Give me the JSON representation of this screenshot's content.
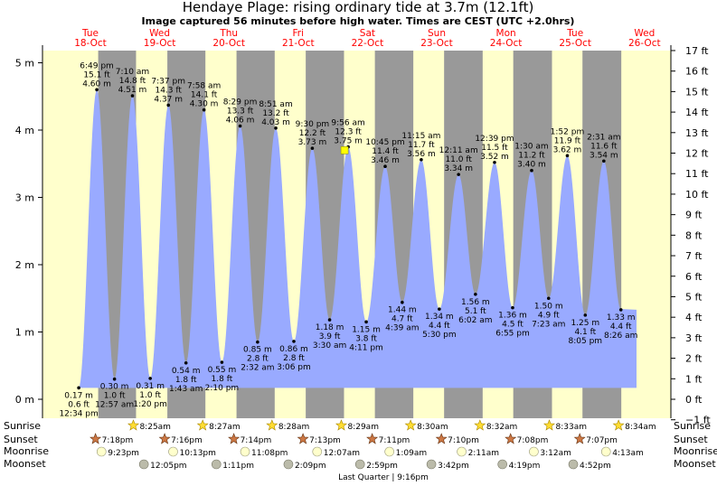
{
  "chart_data": {
    "type": "area",
    "title": "Hendaye Plage: rising  ordinary tide at 3.7m (12.1ft)",
    "subtitle": "Image captured 56 minutes before high water. Times are CEST (UTC +2.0hrs)",
    "y_left_unit": "m",
    "y_right_unit": "ft",
    "ylim_m": [
      -0.3,
      5.15
    ],
    "yticks_m": [
      0,
      1,
      2,
      3,
      4,
      5
    ],
    "yticks_m_labels": [
      "0 m",
      "1 m",
      "2 m",
      "3 m",
      "4 m",
      "5 m"
    ],
    "yticks_ft": [
      -1,
      0,
      1,
      2,
      3,
      4,
      5,
      6,
      7,
      8,
      9,
      10,
      11,
      12,
      13,
      14,
      15,
      16,
      17
    ],
    "yticks_ft_labels": [
      "−1 ft",
      "0 ft",
      "1 ft",
      "2 ft",
      "3 ft",
      "4 ft",
      "5 ft",
      "6 ft",
      "7 ft",
      "8 ft",
      "9 ft",
      "10 ft",
      "11 ft",
      "12 ft",
      "13 ft",
      "14 ft",
      "15 ft",
      "16 ft",
      "17 ft"
    ],
    "days": [
      {
        "name": "Tue",
        "date": "18-Oct"
      },
      {
        "name": "Wed",
        "date": "19-Oct"
      },
      {
        "name": "Thu",
        "date": "20-Oct"
      },
      {
        "name": "Fri",
        "date": "21-Oct"
      },
      {
        "name": "Sat",
        "date": "22-Oct"
      },
      {
        "name": "Sun",
        "date": "23-Oct"
      },
      {
        "name": "Mon",
        "date": "24-Oct"
      },
      {
        "name": "Tue",
        "date": "25-Oct"
      },
      {
        "name": "Wed",
        "date": "26-Oct"
      }
    ],
    "extremes": [
      {
        "type": "low",
        "h": 0.17,
        "ft": "0.6 ft",
        "m": "0.17 m",
        "time": "12:34 pm",
        "day": 0
      },
      {
        "type": "high",
        "h": 4.6,
        "ft": "15.1 ft",
        "m": "4.60 m",
        "time": "6:49 pm",
        "day": 0
      },
      {
        "type": "low",
        "h": 0.3,
        "ft": "1.0 ft",
        "m": "0.30 m",
        "time": "12:57 am",
        "day": 1
      },
      {
        "type": "high",
        "h": 4.51,
        "ft": "14.8 ft",
        "m": "4.51 m",
        "time": "7:10 am",
        "day": 1
      },
      {
        "type": "low",
        "h": 0.31,
        "ft": "1.0 ft",
        "m": "0.31 m",
        "time": "1:20 pm",
        "day": 1
      },
      {
        "type": "high",
        "h": 4.37,
        "ft": "14.3 ft",
        "m": "4.37 m",
        "time": "7:37 pm",
        "day": 1
      },
      {
        "type": "low",
        "h": 0.54,
        "ft": "1.8 ft",
        "m": "0.54 m",
        "time": "1:43 am",
        "day": 2
      },
      {
        "type": "high",
        "h": 4.3,
        "ft": "14.1 ft",
        "m": "4.30 m",
        "time": "7:58 am",
        "day": 2
      },
      {
        "type": "low",
        "h": 0.55,
        "ft": "1.8 ft",
        "m": "0.55 m",
        "time": "2:10 pm",
        "day": 2
      },
      {
        "type": "high",
        "h": 4.06,
        "ft": "13.3 ft",
        "m": "4.06 m",
        "time": "8:29 pm",
        "day": 2
      },
      {
        "type": "low",
        "h": 0.85,
        "ft": "2.8 ft",
        "m": "0.85 m",
        "time": "2:32 am",
        "day": 3
      },
      {
        "type": "high",
        "h": 4.03,
        "ft": "13.2 ft",
        "m": "4.03 m",
        "time": "8:51 am",
        "day": 3
      },
      {
        "type": "low",
        "h": 0.86,
        "ft": "2.8 ft",
        "m": "0.86 m",
        "time": "3:06 pm",
        "day": 3
      },
      {
        "type": "high",
        "h": 3.73,
        "ft": "12.2 ft",
        "m": "3.73 m",
        "time": "9:30 pm",
        "day": 3
      },
      {
        "type": "low",
        "h": 1.18,
        "ft": "3.9 ft",
        "m": "1.18 m",
        "time": "3:30 am",
        "day": 4
      },
      {
        "type": "high",
        "h": 3.75,
        "ft": "12.3 ft",
        "m": "3.75 m",
        "time": "9:56 am",
        "day": 4
      },
      {
        "type": "low",
        "h": 1.15,
        "ft": "3.8 ft",
        "m": "1.15 m",
        "time": "4:11 pm",
        "day": 4
      },
      {
        "type": "high",
        "h": 3.46,
        "ft": "11.4 ft",
        "m": "3.46 m",
        "time": "10:45 pm",
        "day": 4
      },
      {
        "type": "low",
        "h": 1.44,
        "ft": "4.7 ft",
        "m": "1.44 m",
        "time": "4:39 am",
        "day": 5
      },
      {
        "type": "high",
        "h": 3.56,
        "ft": "11.7 ft",
        "m": "3.56 m",
        "time": "11:15 am",
        "day": 5
      },
      {
        "type": "low",
        "h": 1.34,
        "ft": "4.4 ft",
        "m": "1.34 m",
        "time": "5:30 pm",
        "day": 5
      },
      {
        "type": "high",
        "h": 3.34,
        "ft": "11.0 ft",
        "m": "3.34 m",
        "time": "12:11 am",
        "day": 6
      },
      {
        "type": "low",
        "h": 1.56,
        "ft": "5.1 ft",
        "m": "1.56 m",
        "time": "6:02 am",
        "day": 6
      },
      {
        "type": "high",
        "h": 3.52,
        "ft": "11.5 ft",
        "m": "3.52 m",
        "time": "12:39 pm",
        "day": 6
      },
      {
        "type": "low",
        "h": 1.36,
        "ft": "4.5 ft",
        "m": "1.36 m",
        "time": "6:55 pm",
        "day": 6
      },
      {
        "type": "high",
        "h": 3.4,
        "ft": "11.2 ft",
        "m": "3.40 m",
        "time": "1:30 am",
        "day": 7
      },
      {
        "type": "low",
        "h": 1.5,
        "ft": "4.9 ft",
        "m": "1.50 m",
        "time": "7:23 am",
        "day": 7
      },
      {
        "type": "high",
        "h": 3.62,
        "ft": "11.9 ft",
        "m": "3.62 m",
        "time": "1:52 pm",
        "day": 7
      },
      {
        "type": "low",
        "h": 1.25,
        "ft": "4.1 ft",
        "m": "1.25 m",
        "time": "8:05 pm",
        "day": 7
      },
      {
        "type": "high",
        "h": 3.54,
        "ft": "11.6 ft",
        "m": "3.54 m",
        "time": "2:31 am",
        "day": 8
      },
      {
        "type": "low",
        "h": 1.33,
        "ft": "4.4 ft",
        "m": "1.33 m",
        "time": "8:26 am",
        "day": 8
      }
    ],
    "current": {
      "h": 3.7,
      "label": "rising tide at 3.7 m"
    },
    "sunrise": [
      {
        "day": 1,
        "time": "8:25am"
      },
      {
        "day": 2,
        "time": "8:27am"
      },
      {
        "day": 3,
        "time": "8:28am"
      },
      {
        "day": 4,
        "time": "8:29am"
      },
      {
        "day": 5,
        "time": "8:30am"
      },
      {
        "day": 6,
        "time": "8:32am"
      },
      {
        "day": 7,
        "time": "8:33am"
      },
      {
        "day": 8,
        "time": "8:34am"
      }
    ],
    "sunset": [
      {
        "day": 0,
        "time": "7:18pm"
      },
      {
        "day": 1,
        "time": "7:16pm"
      },
      {
        "day": 2,
        "time": "7:14pm"
      },
      {
        "day": 3,
        "time": "7:13pm"
      },
      {
        "day": 4,
        "time": "7:11pm"
      },
      {
        "day": 5,
        "time": "7:10pm"
      },
      {
        "day": 6,
        "time": "7:08pm"
      },
      {
        "day": 7,
        "time": "7:07pm"
      }
    ],
    "moonrise": [
      {
        "day": 0,
        "time": "9:23pm"
      },
      {
        "day": 1,
        "time": "10:13pm"
      },
      {
        "day": 2,
        "time": "11:08pm"
      },
      {
        "day": 4,
        "time": "12:07am"
      },
      {
        "day": 5,
        "time": "1:09am"
      },
      {
        "day": 6,
        "time": "2:11am"
      },
      {
        "day": 7,
        "time": "3:12am"
      },
      {
        "day": 8,
        "time": "4:13am"
      }
    ],
    "moonset": [
      {
        "day": 1,
        "time": "12:05pm"
      },
      {
        "day": 2,
        "time": "1:11pm"
      },
      {
        "day": 3,
        "time": "2:09pm"
      },
      {
        "day": 4,
        "time": "2:59pm"
      },
      {
        "day": 5,
        "time": "3:42pm"
      },
      {
        "day": 6,
        "time": "4:19pm"
      },
      {
        "day": 7,
        "time": "4:52pm"
      }
    ],
    "moon_phase": "Last Quarter | 9:16pm",
    "row_labels": {
      "sunrise": "Sunrise",
      "sunset": "Sunset",
      "moonrise": "Moonrise",
      "moonset": "Moonset"
    },
    "colors": {
      "water": "#99aaff",
      "day_bg": "#ffffcc",
      "night_bg": "#999999",
      "day_label": "#ff0000",
      "sun": "#ffdd33",
      "sunset": "#cc7744",
      "moonrise": "#ffffcc",
      "moonset": "#bbbbaa",
      "current": "#ffff00"
    }
  }
}
